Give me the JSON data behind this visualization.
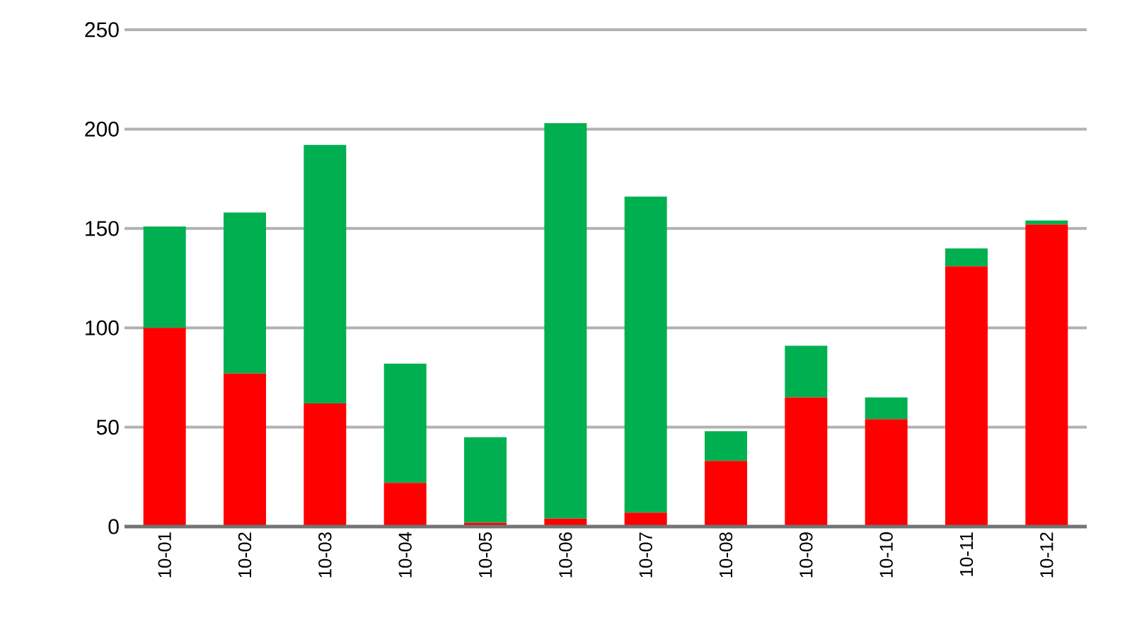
{
  "chart_data": {
    "type": "bar",
    "stacked": true,
    "categories": [
      "10-01",
      "10-02",
      "10-03",
      "10-04",
      "10-05",
      "10-06",
      "10-07",
      "10-08",
      "10-09",
      "10-10",
      "10-11",
      "10-12"
    ],
    "series": [
      {
        "color": "#ff0000",
        "values": [
          100,
          77,
          62,
          22,
          2,
          4,
          7,
          33,
          65,
          54,
          131,
          152
        ]
      },
      {
        "color": "#00b050",
        "values": [
          51,
          81,
          130,
          60,
          43,
          199,
          159,
          15,
          26,
          11,
          9,
          2
        ]
      }
    ],
    "ylim": [
      0,
      250
    ],
    "yticks": [
      0,
      50,
      100,
      150,
      200,
      250
    ],
    "grid": "y"
  }
}
